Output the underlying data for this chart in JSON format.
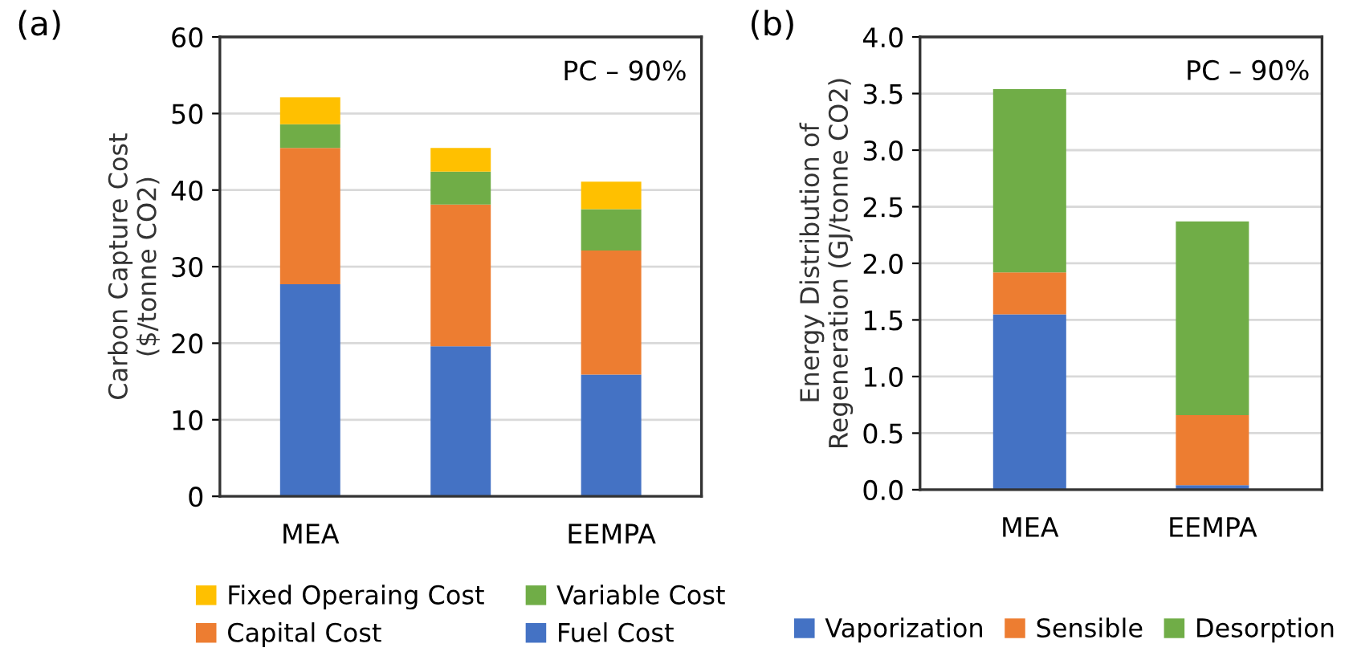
{
  "chart_data": [
    {
      "type": "bar",
      "stacked": true,
      "ylabel": "Carbon Capture Cost\n($/tonne CO2)",
      "categories": [
        "MEA",
        null,
        "EEMPA"
      ],
      "ylim": [
        0,
        60
      ],
      "yticks": [
        0,
        10,
        20,
        30,
        40,
        50,
        60
      ],
      "grid": "y",
      "legend": "bottom",
      "annotations": [
        "(a)",
        "PC – 90%"
      ],
      "series": [
        {
          "name": "Fuel Cost",
          "color": "#4472c4",
          "values": [
            27.7,
            19.6,
            15.9
          ]
        },
        {
          "name": "Capital Cost",
          "color": "#ed7d31",
          "values": [
            17.8,
            18.5,
            16.2
          ]
        },
        {
          "name": "Variable Cost",
          "color": "#70ad47",
          "values": [
            3.1,
            4.3,
            5.4
          ]
        },
        {
          "name": "Fixed Operaing Cost",
          "color": "#ffc000",
          "values": [
            3.5,
            3.1,
            3.6
          ]
        }
      ]
    },
    {
      "type": "bar",
      "stacked": true,
      "ylabel": "Energy Distribution of\nRegeneration (GJ/tonne CO2)",
      "categories": [
        "MEA",
        "EEMPA"
      ],
      "ylim": [
        0,
        4.0
      ],
      "yticks": [
        {
          "value": 0,
          "label": "0.0"
        },
        0.5,
        {
          "value": 1,
          "label": "1.0"
        },
        1.5,
        {
          "value": 2,
          "label": "2.0"
        },
        2.5,
        {
          "value": 3,
          "label": "3.0"
        },
        3.5,
        {
          "value": 4,
          "label": "4.0"
        }
      ],
      "grid": "y",
      "legend": "bottom",
      "annotations": [
        "(b)",
        "PC – 90%"
      ],
      "series": [
        {
          "name": "Vaporization",
          "color": "#4472c4",
          "values": [
            1.55,
            0.04
          ]
        },
        {
          "name": "Sensible",
          "color": "#ed7d31",
          "values": [
            0.37,
            0.62
          ]
        },
        {
          "name": "Desorption",
          "color": "#70ad47",
          "values": [
            1.62,
            1.71
          ]
        }
      ]
    }
  ]
}
